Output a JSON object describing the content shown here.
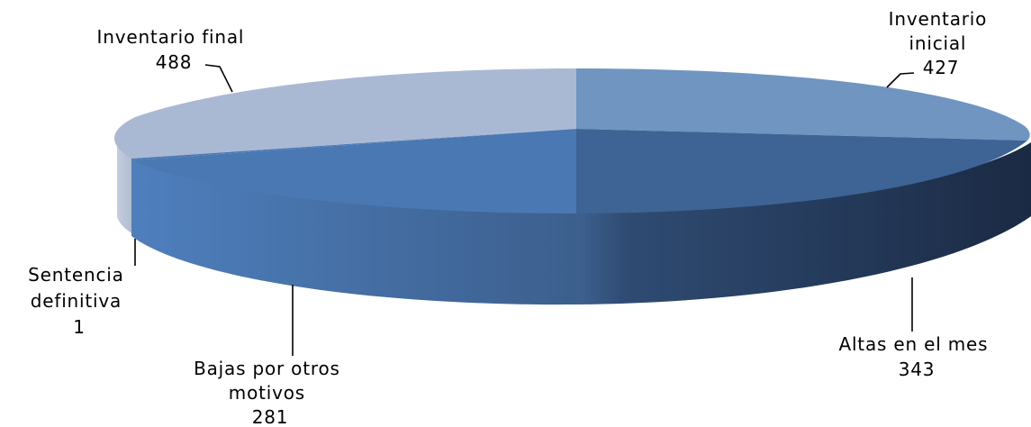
{
  "chart_data": {
    "type": "pie",
    "title": "",
    "three_d": true,
    "categories": [
      "Inventario inicial",
      "Altas en el mes",
      "Bajas por otros motivos",
      "Sentencia definitiva",
      "Inventario final"
    ],
    "values": [
      427,
      343,
      281,
      1,
      488
    ],
    "labels": [
      {
        "lines": [
          "Inventario",
          "inicial"
        ],
        "value": "427"
      },
      {
        "lines": [
          "Altas en el mes"
        ],
        "value": "343"
      },
      {
        "lines": [
          "Bajas por otros",
          "motivos"
        ],
        "value": "281"
      },
      {
        "lines": [
          "Sentencia",
          "definitiva"
        ],
        "value": "1"
      },
      {
        "lines": [
          "Inventario final"
        ],
        "value": "488"
      }
    ],
    "colors": [
      "#6f95c0",
      "#3d6494",
      "#4a78b3",
      "#4a78b3",
      "#aab9d3"
    ],
    "legend": "none",
    "data_labels": "category-and-value"
  }
}
